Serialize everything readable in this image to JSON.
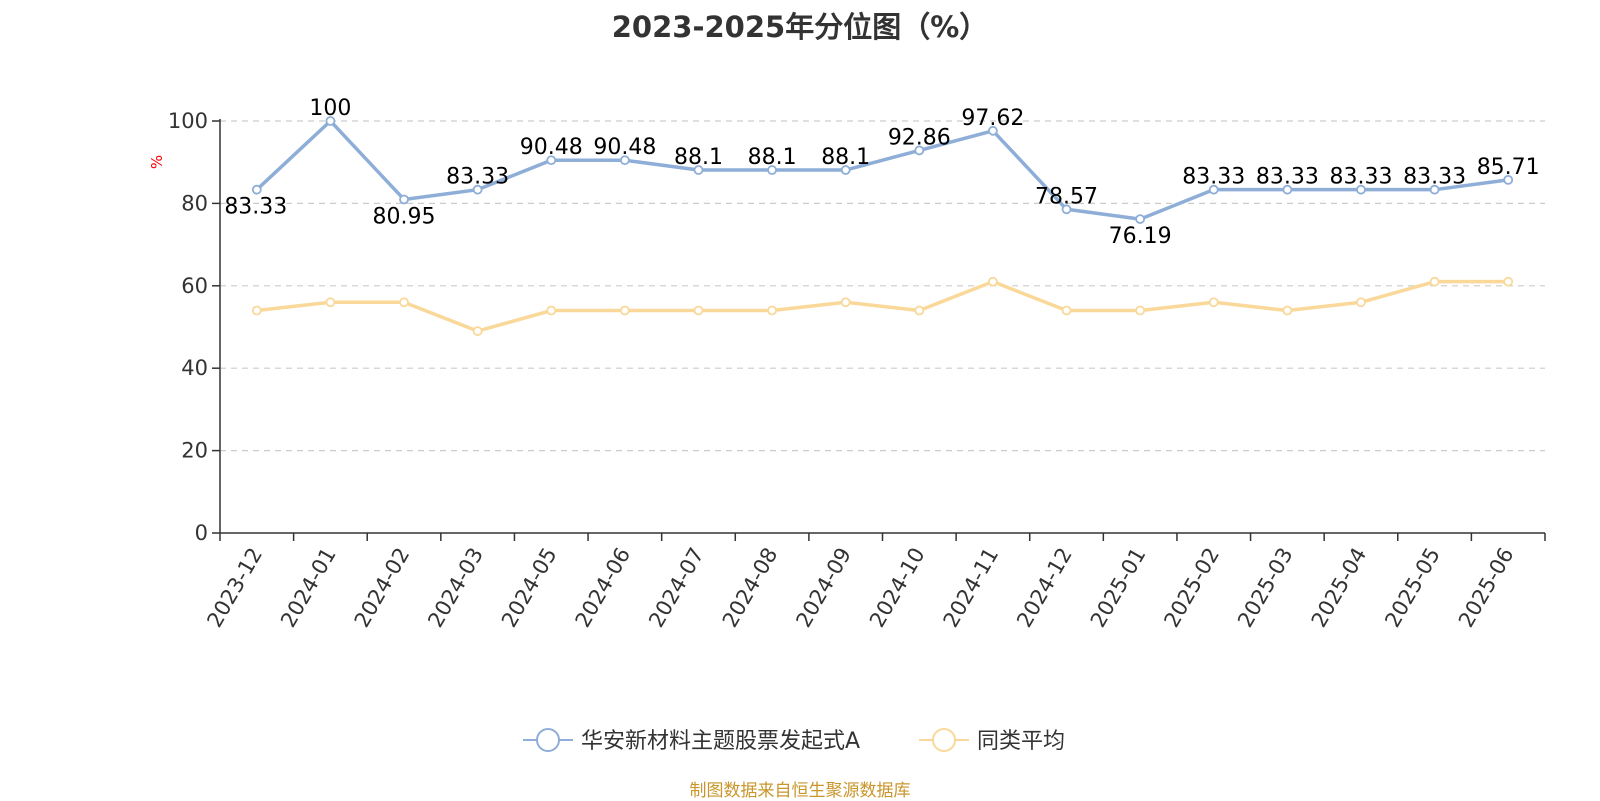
{
  "chart_data": {
    "type": "line",
    "title": "2023-2025年分位图（%）",
    "ylabel": "%",
    "xlabel": "",
    "ylim": [
      0,
      100
    ],
    "yticks": [
      0,
      20,
      40,
      60,
      80,
      100
    ],
    "grid": true,
    "legend_position": "bottom-center",
    "categories": [
      "2023-12",
      "2024-01",
      "2024-02",
      "2024-03",
      "2024-05",
      "2024-06",
      "2024-07",
      "2024-08",
      "2024-09",
      "2024-10",
      "2024-11",
      "2024-12",
      "2025-01",
      "2025-02",
      "2025-03",
      "2025-04",
      "2025-05",
      "2025-06"
    ],
    "series": [
      {
        "name": "华安新材料主题股票发起式A",
        "color": "#8eaed8",
        "show_labels": true,
        "values": [
          83.33,
          100,
          80.95,
          83.33,
          90.48,
          90.48,
          88.1,
          88.1,
          88.1,
          92.86,
          97.62,
          78.57,
          76.19,
          83.33,
          83.33,
          83.33,
          83.33,
          85.71
        ]
      },
      {
        "name": "同类平均",
        "color": "#f9d899",
        "show_labels": false,
        "values": [
          54,
          56,
          56,
          49,
          54,
          54,
          54,
          54,
          56,
          54,
          61,
          54,
          54,
          56,
          54,
          56,
          61,
          61
        ]
      }
    ],
    "source": "制图数据来自恒生聚源数据库"
  }
}
